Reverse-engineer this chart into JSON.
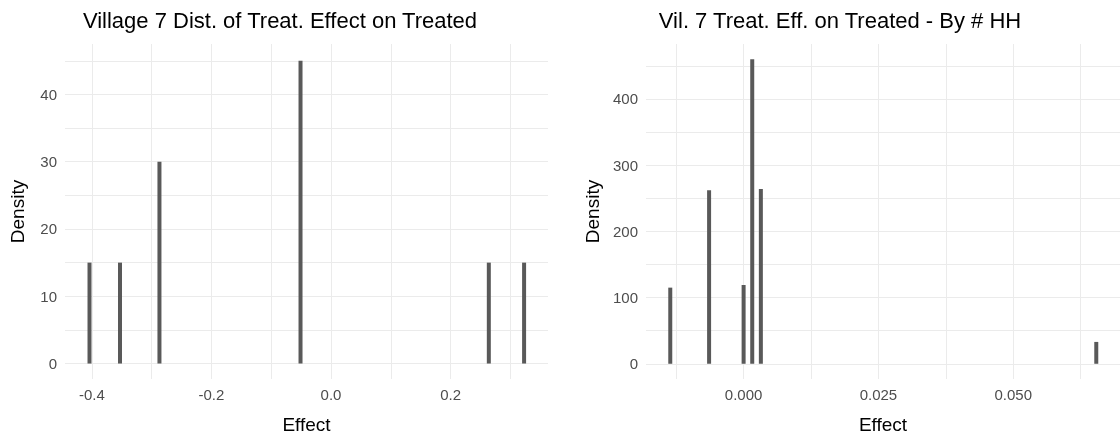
{
  "chart_data": [
    {
      "type": "bar",
      "title": "Village 7 Dist. of Treat. Effect on Treated",
      "xlabel": "Effect",
      "ylabel": "Density",
      "x": [
        -0.404,
        -0.353,
        -0.287,
        -0.051,
        0.264,
        0.323
      ],
      "values": [
        15,
        15,
        30,
        45,
        15,
        15
      ],
      "color": "#595959",
      "xlim": [
        -0.445,
        0.363
      ],
      "xticks": [
        -0.4,
        {
          "value": -0.3,
          "label": null
        },
        -0.2,
        {
          "value": -0.1,
          "label": null
        },
        {
          "value": 0,
          "label": "0.0"
        },
        {
          "value": 0.1,
          "label": null
        },
        0.2,
        {
          "value": 0.3,
          "label": null
        }
      ],
      "ylim": [
        -2.3,
        47.5
      ],
      "yticks": [
        0,
        {
          "value": 5,
          "label": null
        },
        10,
        {
          "value": 15,
          "label": null
        },
        20,
        {
          "value": 25,
          "label": null
        },
        30,
        {
          "value": 35,
          "label": null
        },
        40,
        {
          "value": 45,
          "label": null
        }
      ],
      "grid": true
    },
    {
      "type": "bar",
      "title": "Vil. 7 Treat. Eff. on Treated - By # HH",
      "xlabel": "Effect",
      "ylabel": "Density",
      "x": [
        -0.0136,
        -0.0064,
        0.0,
        0.0016,
        0.0032,
        0.0654
      ],
      "values": [
        115,
        262,
        119,
        460,
        264,
        33
      ],
      "color": "#595959",
      "xlim": [
        -0.0181,
        0.0698
      ],
      "xticks": [
        {
          "value": -0.0125,
          "label": null
        },
        {
          "value": 0.0,
          "label": "0.000"
        },
        {
          "value": 0.0125,
          "label": null
        },
        {
          "value": 0.025,
          "label": "0.025"
        },
        {
          "value": 0.0375,
          "label": null
        },
        {
          "value": 0.05,
          "label": "0.050"
        },
        {
          "value": 0.0625,
          "label": null
        }
      ],
      "ylim": [
        -23,
        483
      ],
      "yticks": [
        0,
        {
          "value": 50,
          "label": null
        },
        100,
        {
          "value": 150,
          "label": null
        },
        200,
        {
          "value": 250,
          "label": null
        },
        300,
        {
          "value": 350,
          "label": null
        },
        400,
        {
          "value": 450,
          "label": null
        }
      ],
      "grid": true
    }
  ]
}
